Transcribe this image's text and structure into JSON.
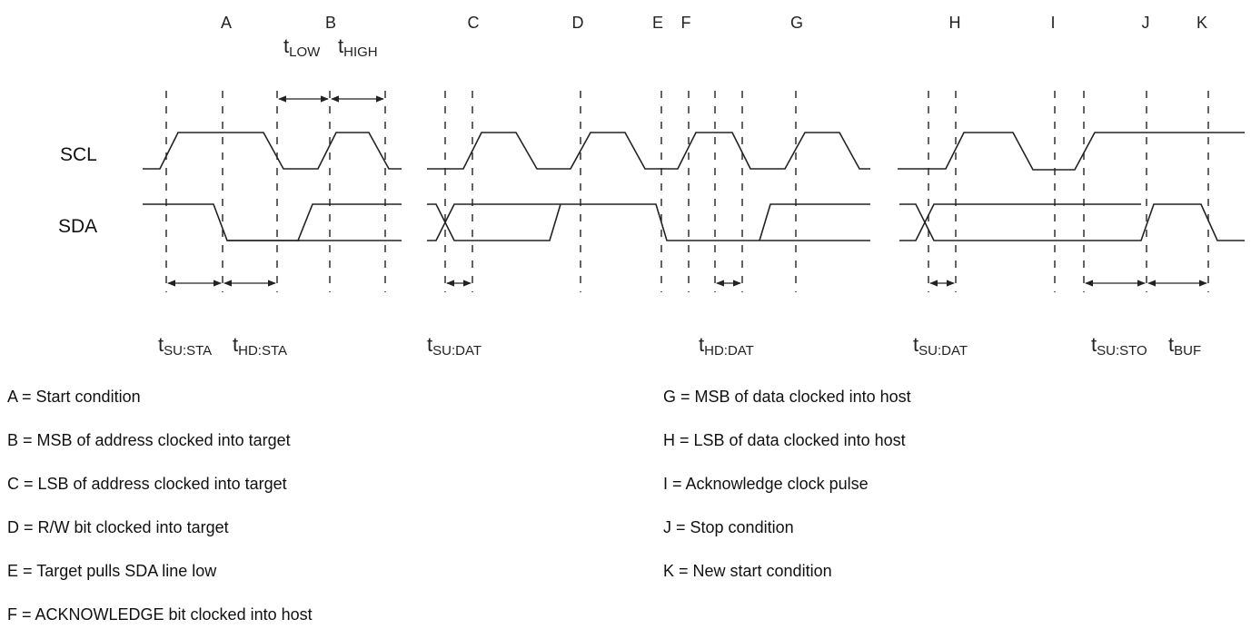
{
  "signals": {
    "scl": "SCL",
    "sda": "SDA"
  },
  "event_markers": [
    "A",
    "B",
    "C",
    "D",
    "E",
    "F",
    "G",
    "H",
    "I",
    "J",
    "K"
  ],
  "timing_labels": [
    {
      "main": "t",
      "sub": "LOW"
    },
    {
      "main": "t",
      "sub": "HIGH"
    },
    {
      "main": "t",
      "sub": "SU:STA"
    },
    {
      "main": "t",
      "sub": "HD:STA"
    },
    {
      "main": "t",
      "sub": "SU:DAT"
    },
    {
      "main": "t",
      "sub": "HD:DAT"
    },
    {
      "main": "t",
      "sub": "SU:DAT"
    },
    {
      "main": "t",
      "sub": "SU:STO"
    },
    {
      "main": "t",
      "sub": "BUF"
    }
  ],
  "legend": {
    "left": [
      "A = Start condition",
      "B = MSB of address clocked into target",
      "C = LSB of address clocked into target",
      "D = R/W bit clocked into target",
      "E = Target pulls SDA line low",
      "F = ACKNOWLEDGE bit clocked into host"
    ],
    "right": [
      "G = MSB of data clocked into host",
      "H = LSB of data clocked into host",
      "I = Acknowledge clock pulse",
      "J = Stop condition",
      "K = New start condition"
    ]
  }
}
